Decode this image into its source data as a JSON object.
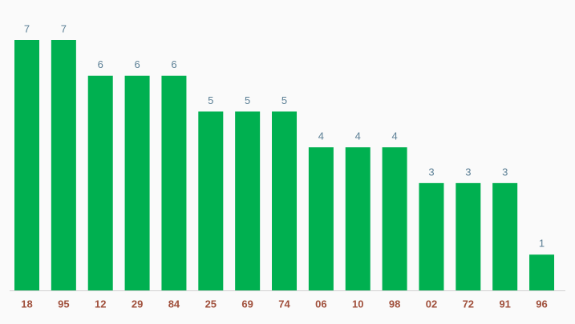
{
  "chart_data": {
    "type": "bar",
    "categories": [
      "18",
      "95",
      "12",
      "29",
      "84",
      "25",
      "69",
      "74",
      "06",
      "10",
      "98",
      "02",
      "72",
      "91",
      "96"
    ],
    "values": [
      7,
      7,
      6,
      6,
      6,
      5,
      5,
      5,
      4,
      4,
      4,
      3,
      3,
      3,
      1
    ],
    "color": "#00b050"
  }
}
